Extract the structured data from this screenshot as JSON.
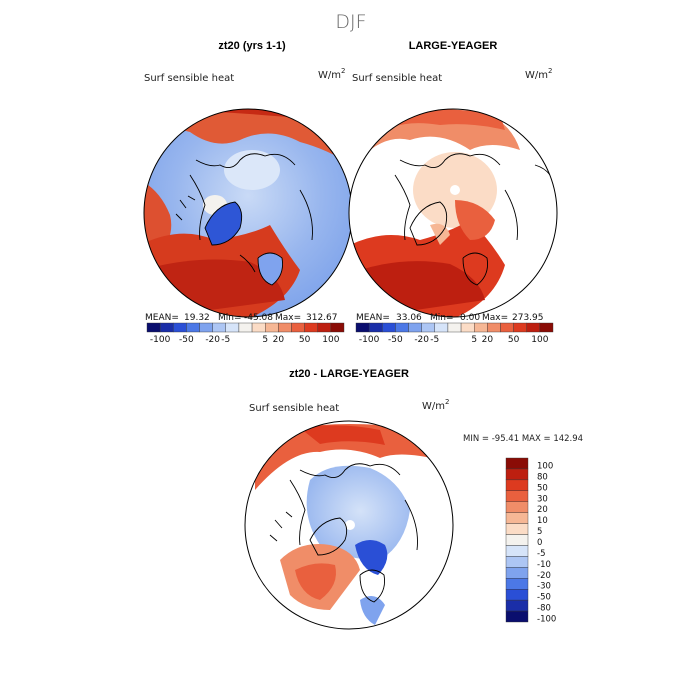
{
  "chart_data": {
    "type": "heatmap",
    "title": "DJF",
    "projection": "north polar stereographic",
    "panels": [
      {
        "id": "a",
        "title": "zt20 (yrs 1-1)",
        "variable": "Surf sensible heat",
        "units": "W/m",
        "units_sup": "2",
        "stats": {
          "mean_label": "MEAN=",
          "mean": "19.32",
          "min_label": "Min=",
          "min": "-45.08",
          "max_label": "Max=",
          "max": "312.67"
        },
        "colorbar_ticks": [
          "-100",
          "-50",
          "-20",
          "-5",
          "5",
          "20",
          "50",
          "100"
        ]
      },
      {
        "id": "b",
        "title": "LARGE-YEAGER",
        "variable": "Surf sensible heat",
        "units": "W/m",
        "units_sup": "2",
        "stats": {
          "mean_label": "MEAN=",
          "mean": "33.06",
          "min_label": "Min=",
          "min": "0.00",
          "max_label": "Max=",
          "max": "273.95"
        },
        "colorbar_ticks": [
          "-100",
          "-50",
          "-20",
          "-5",
          "5",
          "20",
          "50",
          "100"
        ]
      },
      {
        "id": "diff",
        "title": "zt20 - LARGE-YEAGER",
        "variable": "Surf sensible heat",
        "units": "W/m",
        "units_sup": "2",
        "minmax": "MIN = -95.41 MAX = 142.94",
        "colorbar_ticks": [
          "100",
          "80",
          "50",
          "30",
          "20",
          "10",
          "5",
          "0",
          "-5",
          "-10",
          "-20",
          "-30",
          "-50",
          "-80",
          "-100"
        ]
      }
    ],
    "small_colorbar_colors": [
      "#0a0e6e",
      "#1a2ea8",
      "#2a4fd6",
      "#4c78e6",
      "#7fa3ee",
      "#adc6f4",
      "#d6e4f9",
      "#f4f2ee",
      "#fbdcc6",
      "#f6b795",
      "#f08d68",
      "#e9603e",
      "#dd3a1f",
      "#bd1f10",
      "#8a0c06"
    ],
    "diff_colorbar_colors": [
      "#8a0c06",
      "#bd1f10",
      "#dd3a1f",
      "#e9603e",
      "#f08d68",
      "#f6b795",
      "#fbdcc6",
      "#f4f2ee",
      "#d6e4f9",
      "#adc6f4",
      "#7fa3ee",
      "#4c78e6",
      "#2a4fd6",
      "#1a2ea8",
      "#0a0e6e"
    ]
  }
}
